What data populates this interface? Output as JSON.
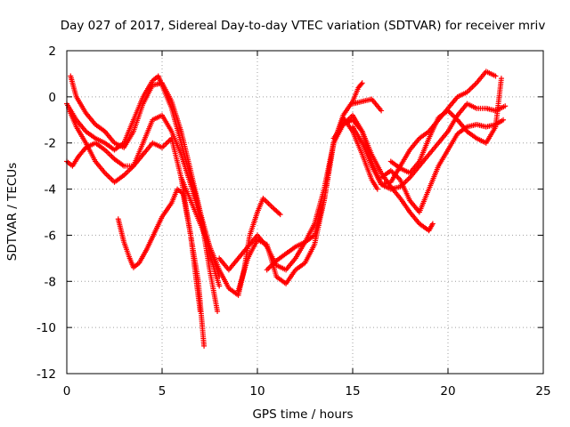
{
  "chart_data": {
    "type": "scatter",
    "title": "Day 027 of 2017, Sidereal Day-to-day VTEC variation (SDTVAR) for receiver mriv",
    "xlabel": "GPS time / hours",
    "ylabel": "SDTVAR / TECUs",
    "xlim": [
      0,
      25
    ],
    "ylim": [
      -12,
      2
    ],
    "xticks": [
      0,
      5,
      10,
      15,
      20,
      25
    ],
    "yticks": [
      -12,
      -10,
      -8,
      -6,
      -4,
      -2,
      0,
      2
    ],
    "grid": true,
    "marker": "+",
    "color": "#ff0000",
    "series": [
      {
        "x": [
          0.0,
          0.5,
          1.0,
          1.5,
          2.0,
          2.5,
          3.0,
          3.5,
          4.0,
          4.5,
          4.8,
          5.0,
          5.5,
          6.0,
          6.5,
          7.0,
          7.5,
          8.0
        ],
        "y": [
          -0.3,
          -1.0,
          -1.5,
          -1.8,
          -2.0,
          -2.3,
          -2.0,
          -1.0,
          0.0,
          0.7,
          0.9,
          0.5,
          -0.5,
          -2.0,
          -3.5,
          -5.0,
          -6.5,
          -7.8
        ]
      },
      {
        "x": [
          0.1,
          0.5,
          1.0,
          1.5,
          2.0,
          2.5,
          3.0,
          3.5,
          4.0,
          4.5,
          5.0,
          5.5,
          6.0,
          6.5,
          7.0,
          7.5,
          8.0
        ],
        "y": [
          -0.5,
          -1.3,
          -2.0,
          -2.8,
          -3.3,
          -3.7,
          -3.4,
          -3.0,
          -2.0,
          -1.0,
          -0.8,
          -1.5,
          -2.5,
          -3.8,
          -5.2,
          -6.8,
          -8.2
        ]
      },
      {
        "x": [
          0.2,
          0.5,
          1.0,
          1.5,
          2.0,
          2.5,
          3.0,
          3.5,
          4.0,
          4.5,
          5.0,
          5.5,
          6.0,
          6.5,
          7.0,
          7.5,
          7.9
        ],
        "y": [
          0.9,
          0.0,
          -0.7,
          -1.2,
          -1.5,
          -2.0,
          -2.2,
          -1.5,
          -0.3,
          0.5,
          0.6,
          -0.2,
          -1.5,
          -3.2,
          -5.0,
          -7.5,
          -9.3
        ]
      },
      {
        "x": [
          0.0,
          0.3,
          0.6,
          1.0,
          1.5,
          2.0,
          2.5,
          3.0,
          3.5,
          4.0,
          4.5,
          5.0,
          5.5,
          6.0,
          6.3,
          6.6,
          6.9,
          7.2
        ],
        "y": [
          -2.8,
          -3.0,
          -2.6,
          -2.2,
          -2.0,
          -2.3,
          -2.7,
          -3.0,
          -3.0,
          -2.5,
          -2.0,
          -2.2,
          -1.8,
          -3.5,
          -5.0,
          -6.5,
          -8.0,
          -10.8
        ]
      },
      {
        "x": [
          2.7,
          3.0,
          3.3,
          3.5,
          3.8,
          4.2,
          4.6,
          5.0,
          5.5,
          5.8,
          6.1,
          6.5,
          6.8,
          7.0
        ],
        "y": [
          -5.3,
          -6.3,
          -7.0,
          -7.4,
          -7.2,
          -6.6,
          -5.9,
          -5.2,
          -4.6,
          -4.0,
          -4.2,
          -6.0,
          -8.0,
          -9.3
        ]
      },
      {
        "x": [
          6.0,
          6.5,
          7.0,
          7.5,
          8.0,
          8.5,
          9.0,
          9.3,
          9.6,
          10.0,
          10.3,
          10.8,
          11.2
        ],
        "y": [
          -3.5,
          -4.5,
          -5.5,
          -6.5,
          -7.5,
          -8.3,
          -8.6,
          -7.5,
          -6.0,
          -5.0,
          -4.4,
          -4.8,
          -5.1
        ]
      },
      {
        "x": [
          8.0,
          8.5,
          9.0,
          9.5,
          10.0,
          10.5,
          11.0,
          11.5,
          12.0,
          12.5,
          13.0,
          13.5,
          14.0,
          14.5,
          15.0,
          15.3,
          15.5
        ],
        "y": [
          -7.0,
          -7.5,
          -7.0,
          -6.5,
          -6.0,
          -6.5,
          -7.3,
          -7.5,
          -7.0,
          -6.3,
          -5.5,
          -4.0,
          -2.0,
          -0.8,
          -0.2,
          0.4,
          0.6
        ]
      },
      {
        "x": [
          9.0,
          9.5,
          10.0,
          10.5,
          11.0,
          11.5,
          12.0,
          12.5,
          13.0,
          13.5,
          14.0,
          14.5,
          15.0,
          15.5,
          16.0,
          16.3
        ],
        "y": [
          -8.4,
          -7.0,
          -6.2,
          -6.4,
          -7.8,
          -8.1,
          -7.5,
          -7.2,
          -6.4,
          -4.5,
          -2.0,
          -0.9,
          -1.5,
          -2.5,
          -3.6,
          -4.0
        ]
      },
      {
        "x": [
          10.5,
          11.0,
          11.5,
          12.0,
          12.5,
          13.0,
          13.5,
          14.0,
          14.5,
          15.0,
          15.5,
          16.0,
          16.5,
          17.0,
          17.5,
          18.0,
          18.5,
          19.0,
          19.2
        ],
        "y": [
          -7.5,
          -7.1,
          -6.8,
          -6.5,
          -6.3,
          -6.0,
          -4.5,
          -2.0,
          -1.2,
          -1.0,
          -1.5,
          -2.5,
          -3.3,
          -3.9,
          -4.4,
          -5.0,
          -5.5,
          -5.8,
          -5.5
        ]
      },
      {
        "x": [
          14.0,
          14.5,
          15.0,
          15.5,
          16.0,
          16.5,
          17.0,
          17.5,
          18.0,
          18.5,
          19.0,
          19.5,
          20.0,
          20.5,
          21.0,
          21.5,
          22.0,
          22.5,
          23.0
        ],
        "y": [
          -1.8,
          -1.2,
          -0.8,
          -1.5,
          -2.8,
          -3.8,
          -4.0,
          -3.9,
          -3.5,
          -3.0,
          -2.5,
          -2.0,
          -1.5,
          -0.8,
          -0.3,
          -0.5,
          -0.5,
          -0.6,
          -0.4
        ]
      },
      {
        "x": [
          15.0,
          15.5,
          16.0,
          16.5,
          17.0,
          17.5,
          18.0,
          18.5,
          19.0,
          19.5,
          20.0,
          20.5,
          21.0,
          21.5,
          22.0,
          22.5
        ],
        "y": [
          -1.3,
          -2.0,
          -3.0,
          -3.8,
          -3.7,
          -3.0,
          -2.3,
          -1.8,
          -1.5,
          -1.0,
          -0.5,
          0.0,
          0.2,
          0.6,
          1.1,
          0.9
        ]
      },
      {
        "x": [
          16.5,
          17.0,
          17.5,
          18.0,
          18.5,
          19.0,
          19.5,
          20.0,
          20.5,
          21.0,
          21.5,
          22.0,
          22.5,
          22.9
        ],
        "y": [
          -3.5,
          -3.2,
          -3.6,
          -4.5,
          -5.0,
          -4.0,
          -3.0,
          -2.3,
          -1.6,
          -1.3,
          -1.2,
          -1.3,
          -1.2,
          -1.0
        ]
      },
      {
        "x": [
          17.0,
          17.5,
          18.0,
          18.5,
          19.0,
          19.5,
          20.0,
          20.5,
          21.0,
          21.5,
          22.0,
          22.5,
          22.8
        ],
        "y": [
          -2.8,
          -3.1,
          -3.3,
          -2.8,
          -1.8,
          -0.9,
          -0.6,
          -1.0,
          -1.5,
          -1.8,
          -2.0,
          -1.3,
          0.8
        ]
      },
      {
        "x": [
          15.0,
          15.5,
          16.0,
          16.5
        ],
        "y": [
          -0.3,
          -0.2,
          -0.1,
          -0.6
        ]
      }
    ]
  }
}
